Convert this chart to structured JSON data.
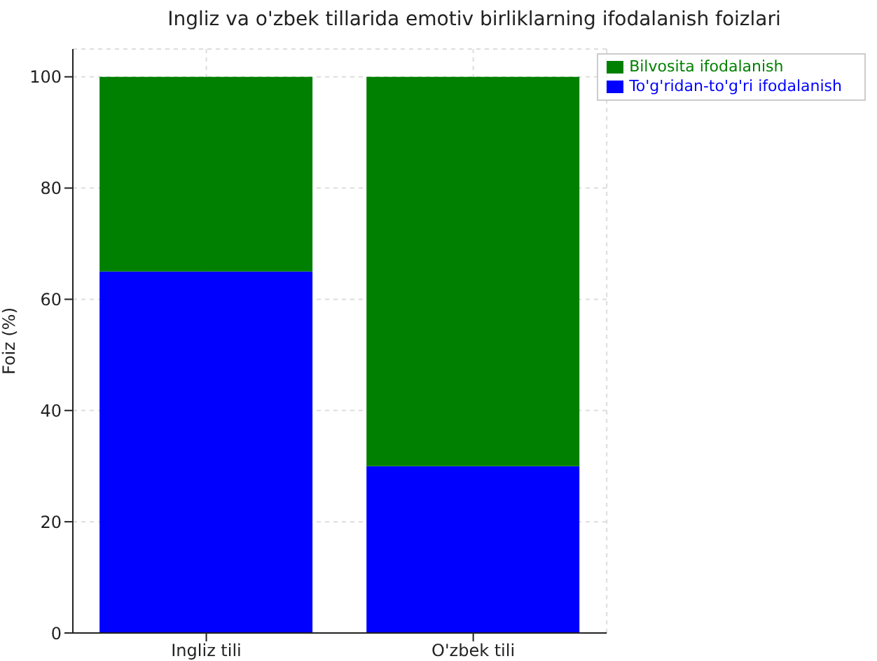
{
  "chart_data": {
    "type": "bar",
    "title": "Ingliz va o'zbek tillarida emotiv birliklarning ifodalanish foizlari",
    "ylabel": "Foiz (%)",
    "categories": [
      "Ingliz tili",
      "O'zbek tili"
    ],
    "stacked": true,
    "series": [
      {
        "name": "To'g'ridan-to'g'ri ifodalanish",
        "color": "#0000ff",
        "values": [
          65,
          30
        ]
      },
      {
        "name": "Bilvosita ifodalanish",
        "color": "#008000",
        "values": [
          35,
          70
        ]
      }
    ],
    "ylim": [
      0,
      105
    ],
    "yticks": [
      0,
      20,
      40,
      60,
      80,
      100
    ],
    "grid": true,
    "legend": "top right"
  }
}
